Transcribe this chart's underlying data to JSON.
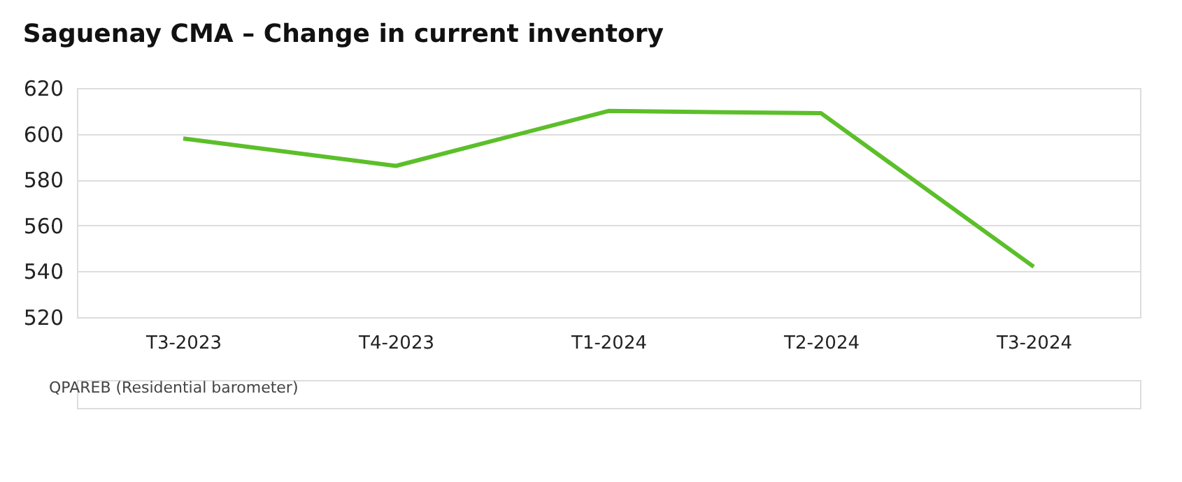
{
  "chart_data": {
    "type": "line",
    "title": "Saguenay CMA – Change in current inventory",
    "categories": [
      "T3-2023",
      "T4-2023",
      "T1-2024",
      "T2-2024",
      "T3-2024"
    ],
    "series": [
      {
        "color": "#5cbf2a",
        "values": [
          598,
          586,
          610,
          609,
          542
        ]
      }
    ],
    "ylim": [
      520,
      620
    ],
    "yticks": [
      520,
      540,
      560,
      580,
      600,
      620
    ],
    "grid": "y",
    "marker": "none",
    "line_style": "solid",
    "annotations": [
      "QPAREB (Residential barometer)"
    ]
  }
}
